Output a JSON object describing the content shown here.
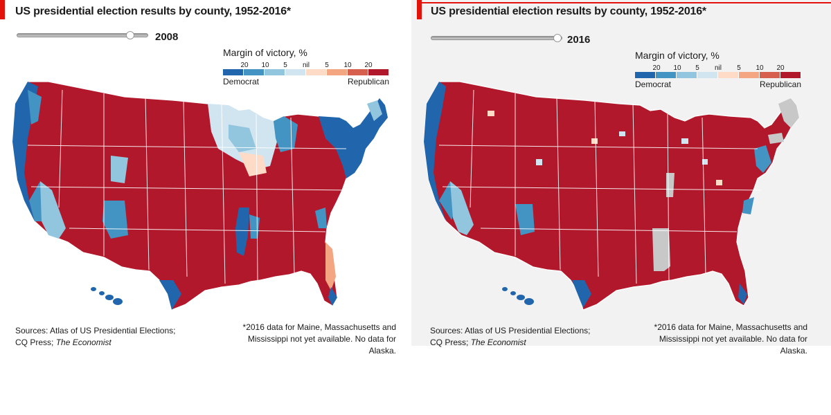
{
  "colors": {
    "dem_strong": "#2166ac",
    "dem_mid": "#4393c3",
    "dem_weak": "#92c5de",
    "dem_nil": "#d1e5f0",
    "rep_nil": "#fddbc7",
    "rep_weak": "#f4a582",
    "rep_mid": "#d6604d",
    "rep_strong": "#b2182b",
    "no_data": "#c8c8c8",
    "state_border": "#ffffff",
    "brand_red": "#e3120b"
  },
  "legend": {
    "title": "Margin of victory, %",
    "ticks": [
      "20",
      "10",
      "5",
      "nil",
      "5",
      "10",
      "20"
    ],
    "democrat_label": "Democrat",
    "republican_label": "Republican"
  },
  "panels": [
    {
      "title": "US presidential election results by county, 1952-2016*",
      "slider_year": "2008",
      "slider_position": 0.85,
      "sources_line1": "Sources: Atlas of US Presidential Elections;",
      "sources_line2_prefix": "CQ Press; ",
      "sources_line2_italic": "The Economist",
      "footnote_line1": "*2016 data for Maine, Massachusetts and",
      "footnote_line2": "Mississippi not yet available. No data for Alaska.",
      "map_note": "Mixed county map: Republican inland West and Plains; Democratic West Coast, Upper Midwest, Northeast, Mississippi Delta, southern Texas"
    },
    {
      "title": "US presidential election results by county, 1952-2016*",
      "slider_year": "2016",
      "slider_position": 1.0,
      "sources_line1": "Sources: Atlas of US Presidential Elections;",
      "sources_line2_prefix": "CQ Press; ",
      "sources_line2_italic": "The Economist",
      "footnote_line1": "*2016 data for Maine, Massachusetts and",
      "footnote_line2": "Mississippi not yet available. No data for Alaska.",
      "map_note": "Predominantly Republican counties; Democratic coasts and cities; Maine, Massachusetts and Mississippi shown grey (no data)"
    }
  ]
}
